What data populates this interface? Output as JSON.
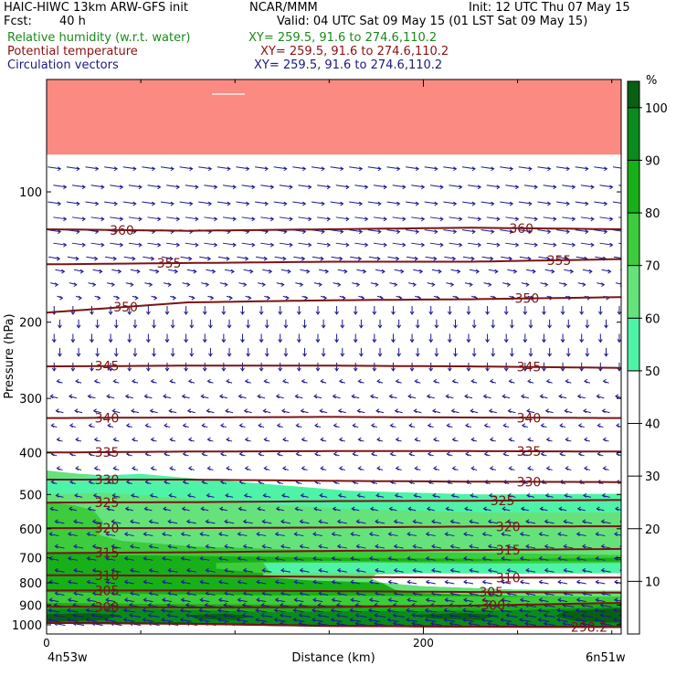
{
  "header": {
    "title": "HAIC-HIWC 13km ARW-GFS init",
    "org": "NCAR/MMM",
    "init": "Init: 12 UTC Thu 07 May 15",
    "fcst_label": "Fcst:",
    "fcst_value": "40 h",
    "valid": "Valid: 04 UTC Sat 09 May 15 (01 LST Sat 09 May 15)",
    "fields": [
      {
        "name": "Relative humidity (w.r.t. water)",
        "xy": "XY= 259.5, 91.6 to 274.6,110.2",
        "color": "#1a8a1a"
      },
      {
        "name": "Potential temperature",
        "xy": "XY= 259.5, 91.6 to 274.6,110.2",
        "color": "#8b1010"
      },
      {
        "name": "Circulation vectors",
        "xy": "XY= 259.5, 91.6 to 274.6,110.2",
        "color": "#1a1a80"
      }
    ]
  },
  "chart_data": {
    "type": "heatmap",
    "xlabel": "Distance (km)",
    "ylabel": "Pressure (hPa)",
    "xlim": [
      0,
      305
    ],
    "ylim": [
      1050,
      55
    ],
    "y_scale": "log",
    "x_ticks": [
      0,
      200
    ],
    "x_minor_ticks": [
      50,
      100,
      150,
      250,
      300
    ],
    "y_ticks": [
      100,
      200,
      300,
      400,
      500,
      600,
      700,
      800,
      900,
      1000
    ],
    "x_endpoint_labels": {
      "left": "4n53w",
      "right": "6n51w"
    },
    "colorbar": {
      "unit": "%",
      "ticks": [
        10,
        20,
        30,
        40,
        50,
        60,
        70,
        80,
        90,
        100
      ],
      "levels": [
        0,
        50,
        60,
        70,
        80,
        90,
        100,
        105
      ],
      "colors": [
        "#ffffff",
        "#4ef3a8",
        "#66e27a",
        "#3ccc3c",
        "#18b018",
        "#0b8a1e",
        "#086014",
        "#fa8a82"
      ]
    },
    "rh_regions": [
      {
        "level": 60,
        "poly": [
          [
            0,
            1050
          ],
          [
            0,
            440
          ],
          [
            15,
            447
          ],
          [
            40,
            455
          ],
          [
            70,
            470
          ],
          [
            110,
            485
          ],
          [
            160,
            500
          ],
          [
            230,
            510
          ],
          [
            305,
            510
          ],
          [
            305,
            1050
          ]
        ]
      },
      {
        "level": 50,
        "poly": [
          [
            0,
            460
          ],
          [
            30,
            452
          ],
          [
            50,
            448
          ],
          [
            80,
            460
          ],
          [
            110,
            470
          ],
          [
            160,
            490
          ],
          [
            230,
            500
          ],
          [
            305,
            498
          ],
          [
            305,
            610
          ],
          [
            230,
            605
          ],
          [
            160,
            590
          ],
          [
            110,
            570
          ],
          [
            70,
            550
          ],
          [
            40,
            530
          ],
          [
            20,
            520
          ],
          [
            0,
            515
          ]
        ]
      },
      {
        "level": 60,
        "poly": [
          [
            0,
            500
          ],
          [
            30,
            495
          ],
          [
            70,
            510
          ],
          [
            110,
            525
          ],
          [
            160,
            540
          ],
          [
            230,
            550
          ],
          [
            305,
            550
          ],
          [
            305,
            640
          ],
          [
            230,
            635
          ],
          [
            160,
            625
          ],
          [
            110,
            605
          ],
          [
            60,
            585
          ],
          [
            0,
            585
          ]
        ]
      },
      {
        "level": 70,
        "poly": [
          [
            0,
            520
          ],
          [
            15,
            530
          ],
          [
            25,
            545
          ],
          [
            30,
            580
          ],
          [
            28,
            620
          ],
          [
            40,
            640
          ],
          [
            80,
            660
          ],
          [
            140,
            672
          ],
          [
            200,
            680
          ],
          [
            260,
            685
          ],
          [
            305,
            690
          ],
          [
            305,
            1050
          ],
          [
            0,
            1050
          ]
        ]
      },
      {
        "level": 80,
        "poly": [
          [
            0,
            680
          ],
          [
            40,
            690
          ],
          [
            100,
            695
          ],
          [
            160,
            700
          ],
          [
            240,
            705
          ],
          [
            305,
            700
          ],
          [
            305,
            1050
          ],
          [
            0,
            1050
          ]
        ]
      },
      {
        "level": 70,
        "poly": [
          [
            90,
            720
          ],
          [
            150,
            712
          ],
          [
            200,
            715
          ],
          [
            260,
            712
          ],
          [
            305,
            715
          ],
          [
            305,
            760
          ],
          [
            250,
            768
          ],
          [
            180,
            770
          ],
          [
            120,
            765
          ],
          [
            90,
            742
          ]
        ]
      },
      {
        "level": 50,
        "poly": [
          [
            115,
            720
          ],
          [
            170,
            718
          ],
          [
            225,
            722
          ],
          [
            305,
            720
          ],
          [
            305,
            768
          ],
          [
            230,
            772
          ],
          [
            175,
            776
          ],
          [
            120,
            773
          ]
        ]
      },
      {
        "level": 60,
        "poly": [
          [
            115,
            760
          ],
          [
            170,
            758
          ],
          [
            230,
            762
          ],
          [
            305,
            760
          ],
          [
            305,
            805
          ],
          [
            230,
            805
          ],
          [
            180,
            800
          ],
          [
            140,
            790
          ],
          [
            115,
            775
          ]
        ]
      },
      {
        "level": 0,
        "poly": [
          [
            172,
            780
          ],
          [
            175,
            765
          ],
          [
            200,
            760
          ],
          [
            250,
            762
          ],
          [
            305,
            760
          ],
          [
            305,
            835
          ],
          [
            250,
            830
          ],
          [
            200,
            815
          ],
          [
            178,
            800
          ]
        ]
      },
      {
        "level": 60,
        "poly": [
          [
            178,
            800
          ],
          [
            200,
            815
          ],
          [
            250,
            830
          ],
          [
            305,
            835
          ],
          [
            305,
            862
          ],
          [
            250,
            858
          ],
          [
            200,
            845
          ],
          [
            185,
            830
          ]
        ]
      },
      {
        "level": 70,
        "poly": [
          [
            0,
            840
          ],
          [
            60,
            850
          ],
          [
            120,
            855
          ],
          [
            180,
            858
          ],
          [
            250,
            862
          ],
          [
            305,
            860
          ],
          [
            305,
            1050
          ],
          [
            0,
            1050
          ]
        ]
      },
      {
        "level": 80,
        "poly": [
          [
            0,
            890
          ],
          [
            60,
            895
          ],
          [
            120,
            898
          ],
          [
            180,
            900
          ],
          [
            250,
            900
          ],
          [
            305,
            895
          ],
          [
            305,
            1050
          ],
          [
            0,
            1050
          ]
        ]
      },
      {
        "level": 90,
        "poly": [
          [
            0,
            920
          ],
          [
            40,
            915
          ],
          [
            80,
            925
          ],
          [
            120,
            935
          ],
          [
            160,
            930
          ],
          [
            200,
            930
          ],
          [
            250,
            925
          ],
          [
            305,
            910
          ],
          [
            305,
            1050
          ],
          [
            0,
            1050
          ]
        ]
      },
      {
        "level": 100,
        "poly": [
          [
            0,
            945
          ],
          [
            25,
            940
          ],
          [
            40,
            950
          ],
          [
            30,
            975
          ],
          [
            0,
            985
          ]
        ]
      },
      {
        "level": 100,
        "poly": [
          [
            75,
            950
          ],
          [
            95,
            942
          ],
          [
            110,
            955
          ],
          [
            100,
            975
          ],
          [
            80,
            970
          ]
        ]
      },
      {
        "level": 100,
        "poly": [
          [
            195,
            948
          ],
          [
            220,
            940
          ],
          [
            240,
            950
          ],
          [
            230,
            975
          ],
          [
            205,
            968
          ]
        ]
      },
      {
        "level": 100,
        "poly": [
          [
            275,
            930
          ],
          [
            305,
            915
          ],
          [
            305,
            990
          ],
          [
            280,
            980
          ],
          [
            270,
            955
          ]
        ]
      },
      {
        "level": 105,
        "poly": [
          [
            0,
            55
          ],
          [
            305,
            55
          ],
          [
            305,
            82
          ],
          [
            0,
            82
          ]
        ]
      }
    ],
    "theta_contours": [
      {
        "theta": 360,
        "p": [
          122,
          123,
          122,
          121,
          122
        ],
        "labels": [
          {
            "x": 40,
            "text": "360"
          },
          {
            "x": 252,
            "text": "360"
          }
        ]
      },
      {
        "theta": 355,
        "p": [
          147,
          146,
          145,
          145,
          143
        ],
        "labels": [
          {
            "x": 65,
            "text": "355"
          },
          {
            "x": 272,
            "text": "355"
          }
        ]
      },
      {
        "theta": 350,
        "p": [
          190,
          180,
          178,
          177,
          175
        ],
        "labels": [
          {
            "x": 42,
            "text": "350"
          },
          {
            "x": 255,
            "text": "350"
          }
        ]
      },
      {
        "theta": 345,
        "p": [
          253,
          252,
          252,
          253,
          255
        ],
        "labels": [
          {
            "x": 32,
            "text": "345"
          },
          {
            "x": 256,
            "text": "345"
          }
        ]
      },
      {
        "theta": 340,
        "p": [
          333,
          332,
          331,
          332,
          333
        ],
        "labels": [
          {
            "x": 32,
            "text": "340"
          },
          {
            "x": 256,
            "text": "340"
          }
        ]
      },
      {
        "theta": 335,
        "p": [
          400,
          398,
          397,
          397,
          398
        ],
        "labels": [
          {
            "x": 32,
            "text": "335"
          },
          {
            "x": 256,
            "text": "335"
          }
        ]
      },
      {
        "theta": 330,
        "p": [
          462,
          462,
          465,
          467,
          468
        ],
        "labels": [
          {
            "x": 32,
            "text": "330"
          },
          {
            "x": 256,
            "text": "330"
          }
        ]
      },
      {
        "theta": 325,
        "p": [
          522,
          521,
          518,
          517,
          515
        ],
        "labels": [
          {
            "x": 32,
            "text": "325"
          },
          {
            "x": 242,
            "text": "325"
          }
        ]
      },
      {
        "theta": 320,
        "p": [
          598,
          598,
          596,
          593,
          592
        ],
        "labels": [
          {
            "x": 32,
            "text": "320"
          },
          {
            "x": 245,
            "text": "320"
          }
        ]
      },
      {
        "theta": 315,
        "p": [
          683,
          680,
          675,
          672,
          668
        ],
        "labels": [
          {
            "x": 32,
            "text": "315"
          },
          {
            "x": 245,
            "text": "315"
          }
        ]
      },
      {
        "theta": 310,
        "p": [
          768,
          770,
          775,
          778,
          778
        ],
        "labels": [
          {
            "x": 32,
            "text": "310"
          },
          {
            "x": 245,
            "text": "310"
          }
        ]
      },
      {
        "theta": 305,
        "p": [
          833,
          833,
          836,
          840,
          843
        ],
        "labels": [
          {
            "x": 32,
            "text": "305"
          },
          {
            "x": 236,
            "text": "305"
          }
        ]
      },
      {
        "theta": 300,
        "p": [
          908,
          912,
          910,
          903,
          890
        ],
        "labels": [
          {
            "x": 32,
            "text": "300"
          },
          {
            "x": 237,
            "text": "300"
          }
        ]
      },
      {
        "theta": 298.2,
        "p": [
          990,
          995,
          1005,
          1010,
          1012
        ],
        "labels": [
          {
            "x": 288,
            "text": "298.2"
          }
        ]
      }
    ],
    "contour_x": [
      0,
      75,
      150,
      225,
      305
    ],
    "terrain_p": [
      990,
      994,
      1006,
      1010,
      1012
    ],
    "vectors": {
      "x_spacing_km": 10,
      "levels": [
        {
          "p": 88,
          "u": 6
        },
        {
          "p": 97,
          "u": 6
        },
        {
          "p": 106,
          "u": 6
        },
        {
          "p": 115,
          "u": 6
        },
        {
          "p": 123,
          "u": 6
        },
        {
          "p": 132,
          "u": 5
        },
        {
          "p": 142,
          "u": 4
        },
        {
          "p": 152,
          "u": 3
        },
        {
          "p": 163,
          "u": 2
        },
        {
          "p": 175,
          "u": 1
        },
        {
          "p": 188,
          "u": 0
        },
        {
          "p": 202,
          "u": 0
        },
        {
          "p": 218,
          "u": 0
        },
        {
          "p": 235,
          "u": 0
        },
        {
          "p": 254,
          "u": 0
        },
        {
          "p": 275,
          "u": -1
        },
        {
          "p": 298,
          "u": -2
        },
        {
          "p": 322,
          "u": -2
        },
        {
          "p": 348,
          "u": -1
        },
        {
          "p": 375,
          "u": -1
        },
        {
          "p": 405,
          "u": -1
        },
        {
          "p": 437,
          "u": -1
        },
        {
          "p": 470,
          "u": -1
        },
        {
          "p": 505,
          "u": -2
        },
        {
          "p": 542,
          "u": -2
        },
        {
          "p": 580,
          "u": -3
        },
        {
          "p": 620,
          "u": -3
        },
        {
          "p": 662,
          "u": -3
        },
        {
          "p": 706,
          "u": -3
        },
        {
          "p": 752,
          "u": -3
        },
        {
          "p": 800,
          "u": -3
        },
        {
          "p": 850,
          "u": -3
        },
        {
          "p": 880,
          "u": -3
        },
        {
          "p": 905,
          "u": -4
        },
        {
          "p": 930,
          "u": -4
        },
        {
          "p": 955,
          "u": -4
        },
        {
          "p": 978,
          "u": -4
        },
        {
          "p": 998,
          "u": -4
        }
      ]
    }
  }
}
